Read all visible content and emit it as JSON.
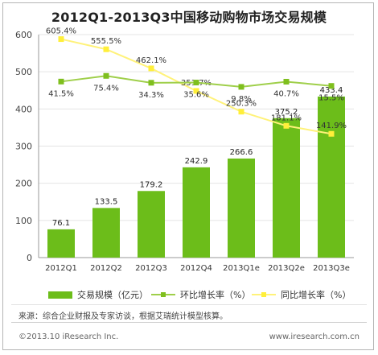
{
  "chart_data": {
    "type": "bar",
    "title": "2012Q1-2013Q3中国移动购物市场交易规模",
    "categories": [
      "2012Q1",
      "2012Q2",
      "2012Q3",
      "2012Q4",
      "2013Q1e",
      "2013Q2e",
      "2013Q3e"
    ],
    "ylim": [
      0,
      600
    ],
    "yticks": [
      "0",
      "100",
      "200",
      "300",
      "400",
      "500",
      "600"
    ],
    "grid": true,
    "series": [
      {
        "name": "交易规模（亿元）",
        "type": "bar",
        "color": "#6cbd1a",
        "values": [
          76.1,
          133.5,
          179.2,
          242.9,
          266.6,
          375.2,
          433.4
        ],
        "labels": [
          "76.1",
          "133.5",
          "179.2",
          "242.9",
          "266.6",
          "375.2",
          "433.4"
        ]
      },
      {
        "name": "环比增长率（%）",
        "type": "line",
        "color": "#7fbf1e",
        "values": [
          41.5,
          75.4,
          34.3,
          35.6,
          9.8,
          40.7,
          15.5
        ],
        "labels": [
          "41.5%",
          "75.4%",
          "34.3%",
          "35.6%",
          "9.8%",
          "40.7%",
          "15.5%"
        ]
      },
      {
        "name": "同比增长率（%）",
        "type": "line",
        "color": "#ffef3a",
        "values": [
          605.4,
          555.5,
          462.1,
          351.7,
          250.3,
          181.1,
          141.9
        ],
        "labels": [
          "605.4%",
          "555.5%",
          "462.1%",
          "351.7%",
          "250.3%",
          "181.1%",
          "141.9%"
        ]
      }
    ]
  },
  "legend": {
    "bar": "交易规模（亿元）",
    "mom": "环比增长率（%）",
    "yoy": "同比增长率（%）"
  },
  "source": "来源：综合企业财报及专家访谈，根据艾瑞统计模型核算。",
  "footer": {
    "copyright": "©2013.10 iResearch Inc.",
    "website": "www.iresearch.com.cn"
  }
}
